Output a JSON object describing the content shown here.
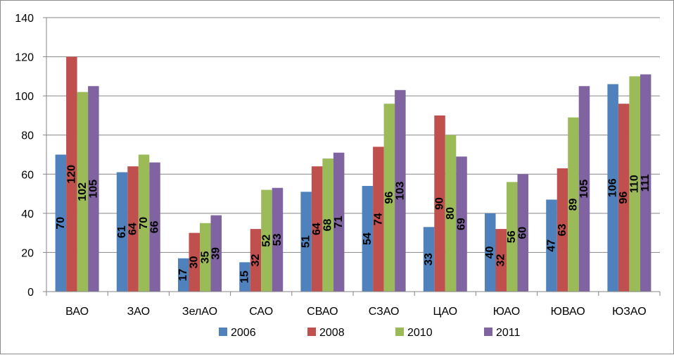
{
  "chart_data": {
    "type": "bar",
    "title": "",
    "xlabel": "",
    "ylabel": "",
    "ylim": [
      0,
      140
    ],
    "yticks": [
      0,
      20,
      40,
      60,
      80,
      100,
      120,
      140
    ],
    "grid": "horizontal",
    "legend_position": "bottom",
    "categories": [
      "ВАО",
      "ЗАО",
      "ЗелАО",
      "САО",
      "СВАО",
      "СЗАО",
      "ЦАО",
      "ЮАО",
      "ЮВАО",
      "ЮЗАО"
    ],
    "series": [
      {
        "name": "2006",
        "color": "#4f81bd",
        "values": [
          70,
          61,
          17,
          15,
          51,
          54,
          33,
          40,
          47,
          106
        ]
      },
      {
        "name": "2008",
        "color": "#c0504d",
        "values": [
          120,
          64,
          30,
          32,
          64,
          74,
          90,
          32,
          63,
          96
        ]
      },
      {
        "name": "2010",
        "color": "#9bbb59",
        "values": [
          102,
          70,
          35,
          52,
          68,
          96,
          80,
          56,
          89,
          110
        ]
      },
      {
        "name": "2011",
        "color": "#8064a2",
        "values": [
          105,
          66,
          39,
          53,
          71,
          103,
          69,
          60,
          105,
          111
        ]
      }
    ]
  }
}
